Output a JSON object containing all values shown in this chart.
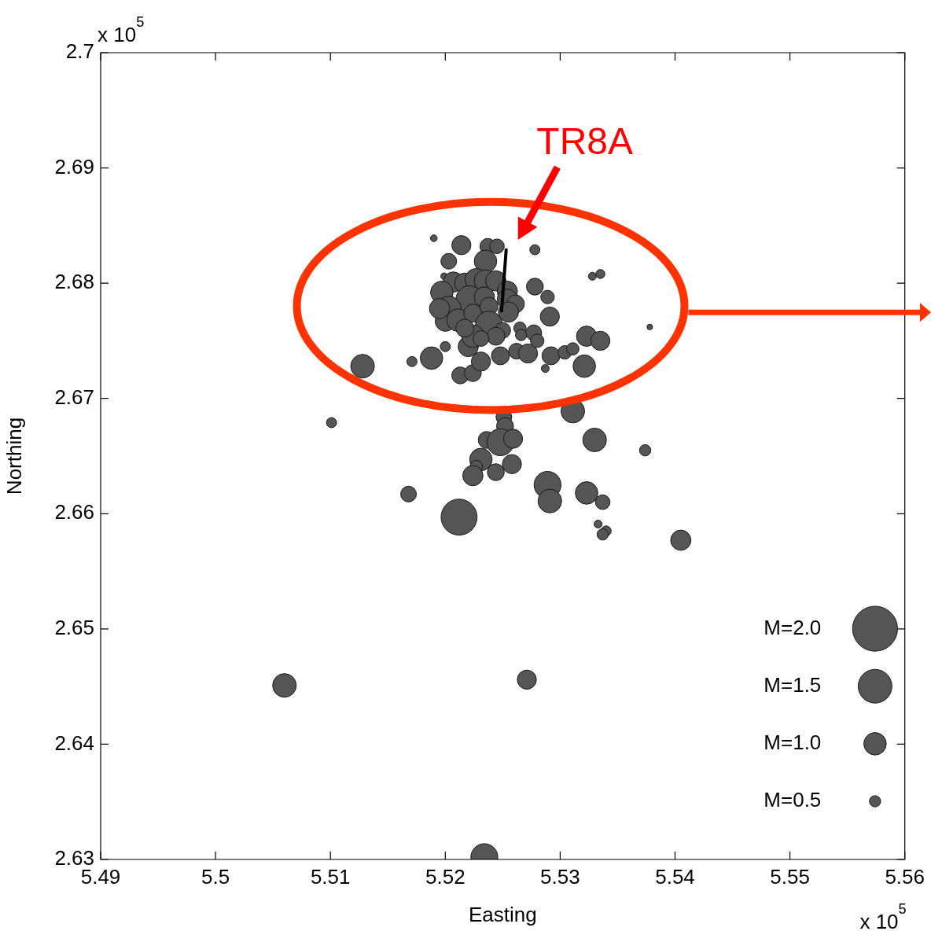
{
  "chart_data": {
    "type": "bubble",
    "xlabel": "Easting",
    "ylabel": "Northing",
    "xlim": [
      5.49,
      5.56
    ],
    "ylim": [
      2.63,
      2.7
    ],
    "xticks": [
      5.49,
      5.5,
      5.51,
      5.52,
      5.53,
      5.54,
      5.55,
      5.56
    ],
    "yticks": [
      2.63,
      2.64,
      2.65,
      2.66,
      2.67,
      2.68,
      2.69,
      2.7
    ],
    "annotations": [
      "x 10$^{5}$",
      "x 10$^{5}$",
      "TR8A",
      "M=2.0",
      "M=1.5",
      "M=1.0",
      "M=0.5"
    ],
    "grid": false,
    "series": [
      {
        "marker": "circle",
        "color": "#555555",
        "x": [
          5.519,
          5.5214,
          5.5203,
          5.5199,
          5.5237,
          5.5245,
          5.5235,
          5.5278,
          5.5278,
          5.5289,
          5.5291,
          5.5328,
          5.5335,
          5.5378,
          5.5323,
          5.5335,
          5.5321,
          5.5128,
          5.5171,
          5.5188,
          5.52,
          5.5213,
          5.5224,
          5.5231,
          5.5248,
          5.5262,
          5.5272,
          5.5292,
          5.5304,
          5.5311,
          5.5287,
          5.522,
          5.5265,
          5.5277,
          5.528,
          5.5266,
          5.5207,
          5.5217,
          5.5227,
          5.5235,
          5.5244,
          5.5197,
          5.5221,
          5.5234,
          5.5254,
          5.5254,
          5.5261,
          5.5203,
          5.52,
          5.5211,
          5.5224,
          5.5238,
          5.5238,
          5.5255,
          5.525,
          5.5224,
          5.5244,
          5.5217,
          5.5195,
          5.5231,
          5.5311,
          5.533,
          5.5374,
          5.5251,
          5.5252,
          5.5236,
          5.5248,
          5.5259,
          5.5231,
          5.5227,
          5.5224,
          5.5244,
          5.5258,
          5.5289,
          5.5291,
          5.5323,
          5.5337,
          5.5168,
          5.5212,
          5.5333,
          5.534,
          5.5337,
          5.5405,
          5.5101,
          5.506,
          5.5271,
          5.5234
        ],
        "values": [
          2.6839,
          2.6833,
          2.6819,
          2.6806,
          2.6832,
          2.6832,
          2.6819,
          2.6829,
          2.6797,
          2.6788,
          2.6771,
          2.6806,
          2.6808,
          2.6762,
          2.6754,
          2.675,
          2.6728,
          2.6728,
          2.6732,
          2.6735,
          2.6745,
          2.672,
          2.6722,
          2.6732,
          2.6737,
          2.6741,
          2.6739,
          2.6737,
          2.674,
          2.6743,
          2.6726,
          2.6745,
          2.6761,
          2.6757,
          2.675,
          2.6755,
          2.6801,
          2.68,
          2.6803,
          2.6802,
          2.6802,
          2.6792,
          2.6786,
          2.6788,
          2.6793,
          2.6786,
          2.6782,
          2.6778,
          2.6767,
          2.6768,
          2.6774,
          2.678,
          2.6764,
          2.6775,
          2.6759,
          2.6754,
          2.6754,
          2.6761,
          2.6778,
          2.6752,
          2.6689,
          2.6664,
          2.6655,
          2.6684,
          2.6676,
          2.6664,
          2.6662,
          2.6665,
          2.6647,
          2.6641,
          2.6633,
          2.6636,
          2.6643,
          2.6625,
          2.6611,
          2.6618,
          2.661,
          2.6617,
          2.6597,
          2.6591,
          2.6585,
          2.6582,
          2.6577,
          2.6679,
          2.6451,
          2.6456,
          2.6302
        ],
        "sizes": [
          0.035,
          0.282,
          0.191,
          0.035,
          0.191,
          0.165,
          0.391,
          0.079,
          0.22,
          0.141,
          0.282,
          0.048,
          0.063,
          0.024,
          0.316,
          0.282,
          0.391,
          0.431,
          0.079,
          0.391,
          0.079,
          0.22,
          0.22,
          0.282,
          0.25,
          0.191,
          0.282,
          0.25,
          0.141,
          0.118,
          0.048,
          0.316,
          0.118,
          0.191,
          0.141,
          0.098,
          0.316,
          0.316,
          0.391,
          0.391,
          0.316,
          0.391,
          0.56,
          0.316,
          0.316,
          0.316,
          0.25,
          0.473,
          0.316,
          0.391,
          0.25,
          0.25,
          0.56,
          0.316,
          0.191,
          0.391,
          0.25,
          0.25,
          0.316,
          0.191,
          0.431,
          0.431,
          0.098,
          0.191,
          0.22,
          0.22,
          0.56,
          0.282,
          0.391,
          0.118,
          0.316,
          0.22,
          0.282,
          0.56,
          0.431,
          0.391,
          0.165,
          0.191,
          1,
          0.048,
          0.079,
          0.098,
          0.316,
          0.079,
          0.431,
          0.282,
          0.56
        ]
      },
      {
        "type": "line",
        "marker": "none",
        "color": "#000000",
        "x": [
          5.5253,
          5.5249
        ],
        "values": [
          2.6829,
          2.6776
        ]
      }
    ]
  }
}
